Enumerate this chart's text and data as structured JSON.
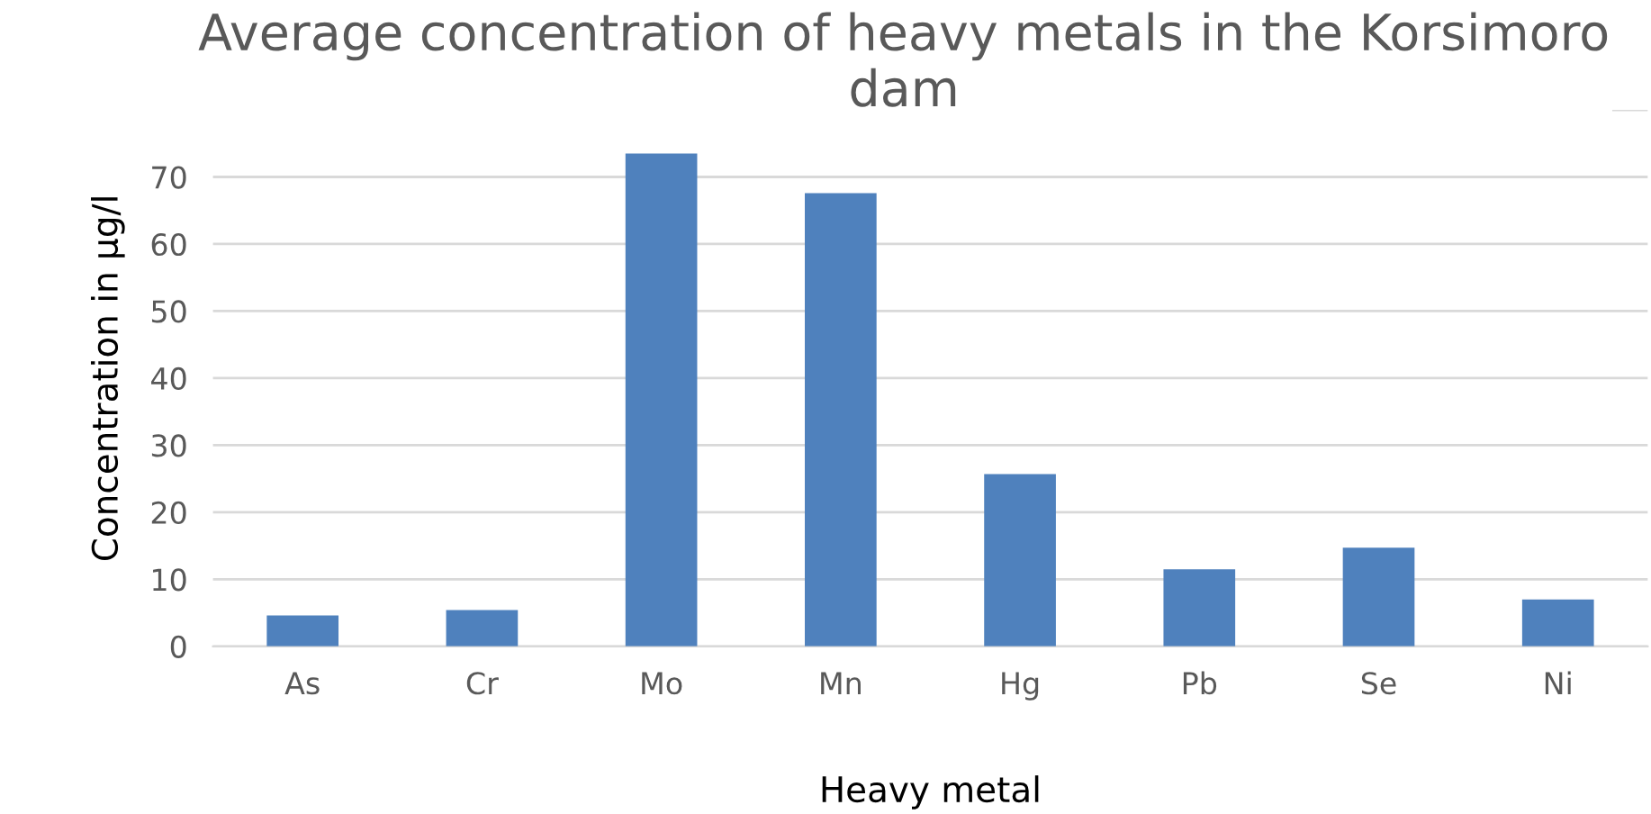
{
  "chart_data": {
    "type": "bar",
    "title": "Average concentration of heavy metals in the Korsimoro dam",
    "xlabel": "Heavy metal",
    "ylabel": "Concentration in µg/l",
    "categories": [
      "As",
      "Cr",
      "Mo",
      "Mn",
      "Hg",
      "Pb",
      "Se",
      "Ni"
    ],
    "values": [
      4.6,
      5.4,
      73.5,
      67.6,
      25.7,
      11.5,
      14.7,
      7.0
    ],
    "color": "#4f81bd",
    "ylim": [
      0,
      80
    ],
    "yticks": [
      0,
      10,
      20,
      30,
      40,
      50,
      60,
      70,
      {
        "value": 80,
        "label": null
      }
    ],
    "grid": "y",
    "legend": false
  }
}
